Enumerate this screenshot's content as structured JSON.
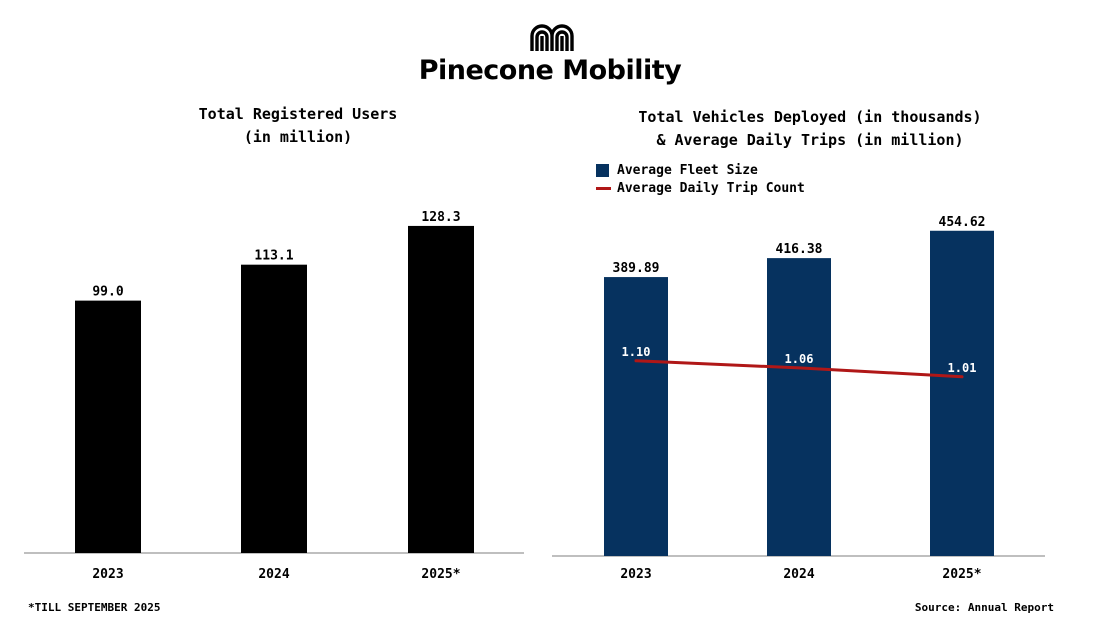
{
  "brand": {
    "logo_icon": "mm-monogram-icon",
    "name": "Pinecone Mobility"
  },
  "chart_data": [
    {
      "type": "bar",
      "title": [
        "Total Registered Users",
        "(in million)"
      ],
      "categories": [
        "2023",
        "2024",
        "2025*"
      ],
      "values": [
        99.0,
        113.1,
        128.3
      ],
      "value_labels": [
        "99.0",
        "113.1",
        "128.3"
      ],
      "ylim": [
        0,
        142
      ],
      "color": "#000000"
    },
    {
      "type": "bar+line",
      "title": [
        "Total Vehicles Deployed (in thousands)",
        "& Average Daily Trips (in million)"
      ],
      "categories": [
        "2023",
        "2024",
        "2025*"
      ],
      "series": [
        {
          "name": "Average Fleet Size",
          "kind": "bar",
          "values": [
            389.89,
            416.38,
            454.62
          ],
          "value_labels": [
            "389.89",
            "416.38",
            "454.62"
          ],
          "ylim": [
            0,
            506
          ],
          "color": "#06325f"
        },
        {
          "name": "Average Daily Trip Count",
          "kind": "line",
          "values": [
            1.1,
            1.06,
            1.01
          ],
          "value_labels": [
            "1.10",
            "1.06",
            "1.01"
          ],
          "ylim": [
            0,
            2.04
          ],
          "color": "#b01717"
        }
      ],
      "legend_position": "top-left"
    }
  ],
  "footnotes": {
    "left": "*TILL SEPTEMBER 2025",
    "right": "Source: Annual Report"
  }
}
